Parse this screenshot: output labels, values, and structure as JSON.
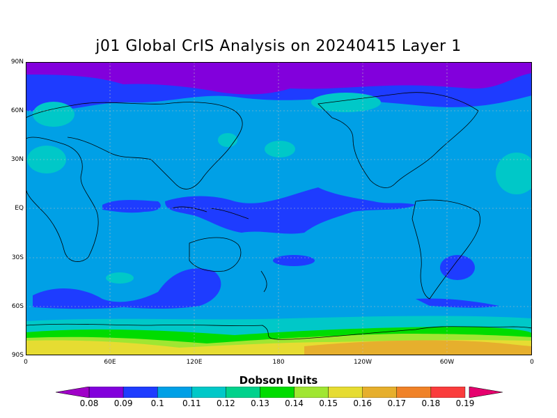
{
  "title": "j01 Global CrIS Analysis on 20240415 Layer 1",
  "y_axis_labels": [
    "90N",
    "60N",
    "30N",
    "EQ",
    "30S",
    "60S",
    "90S"
  ],
  "x_axis_labels": [
    "0",
    "60E",
    "120E",
    "180",
    "120W",
    "60W",
    "0"
  ],
  "colorbar": {
    "title": "Dobson Units",
    "labels": [
      "0.08",
      "0.09",
      "0.1",
      "0.11",
      "0.12",
      "0.13",
      "0.14",
      "0.15",
      "0.16",
      "0.17",
      "0.18",
      "0.19"
    ],
    "colors": [
      "#a000c8",
      "#8200dc",
      "#1e3cff",
      "#00a0e6",
      "#00c8c8",
      "#00d28c",
      "#00dc00",
      "#a0e632",
      "#e6dc32",
      "#e6af2d",
      "#f08228",
      "#fa3c3c",
      "#e6006e"
    ]
  },
  "map_colors": {
    "deep_purple": "#8200dc",
    "blue": "#1e3cff",
    "light_blue": "#00a0e6",
    "teal": "#00c8c8",
    "green_teal": "#00d28c",
    "green": "#00dc00",
    "yellow_green": "#a0e632",
    "yellow": "#e6dc32",
    "orange": "#e6af2d"
  }
}
